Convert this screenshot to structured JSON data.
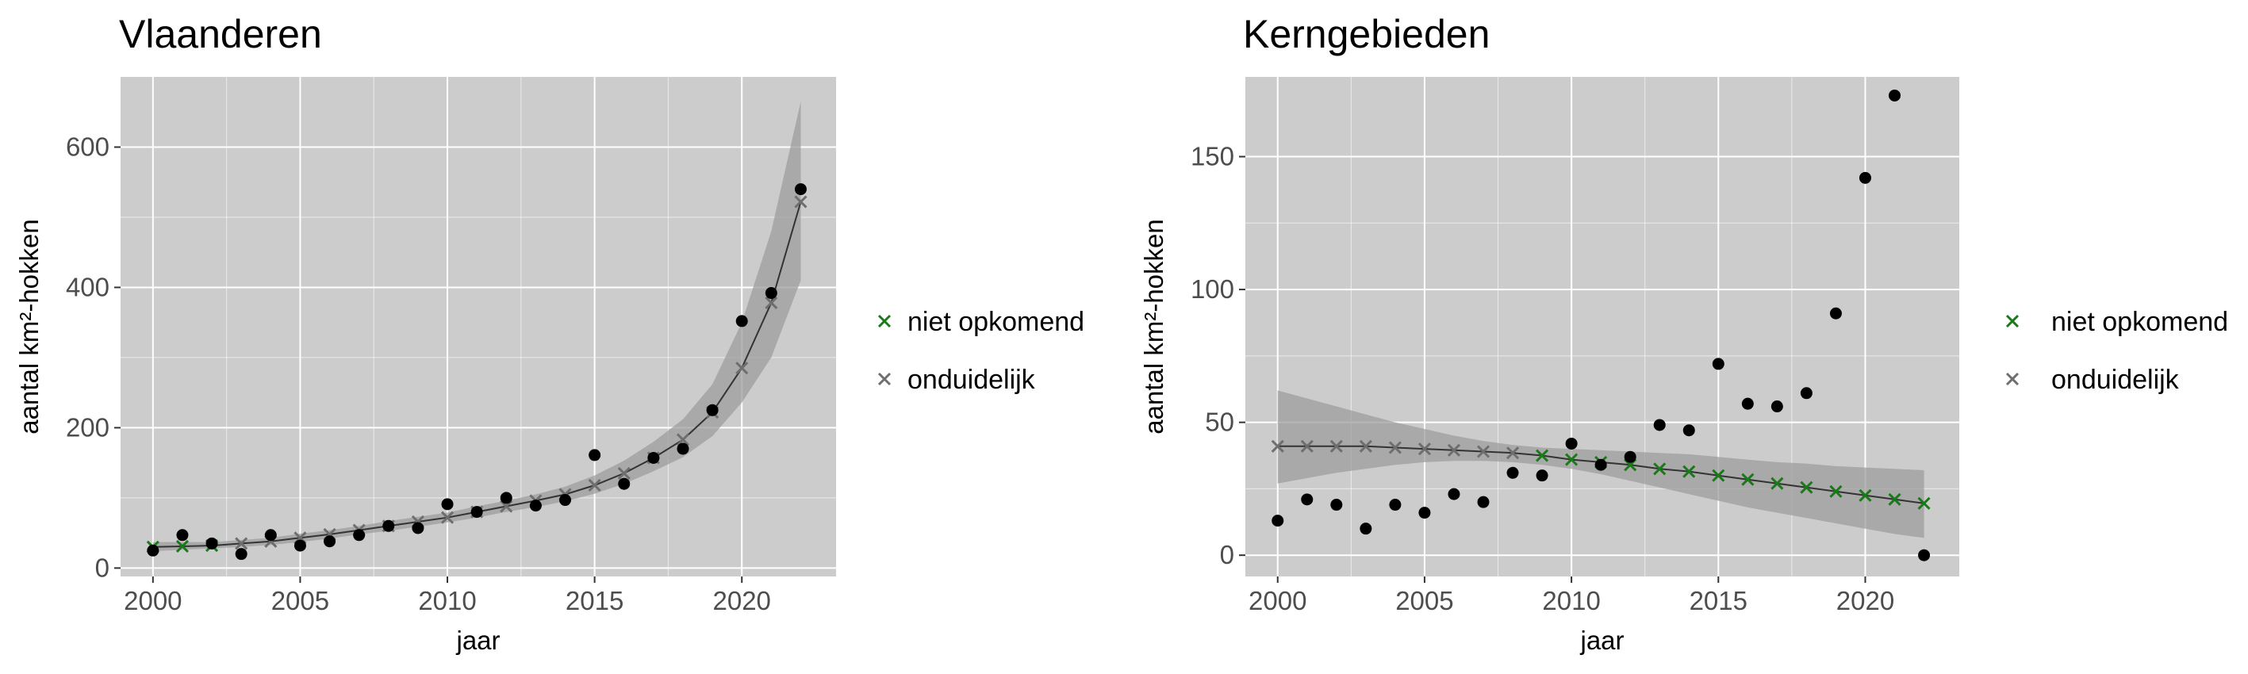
{
  "colors": {
    "panel_background": "#cccccc",
    "grid_major": "#ffffff",
    "confidence_band": "#9e9e9e",
    "observed_point": "#000000",
    "trend_line": "#333333",
    "niet_opkomend": "#1a7a1a",
    "onduidelijk": "#6e6e6e"
  },
  "legend": {
    "items": [
      {
        "label": "niet opkomend",
        "color": "#1a7a1a",
        "marker": "cross-x"
      },
      {
        "label": "onduidelijk",
        "color": "#6e6e6e",
        "marker": "cross-x"
      }
    ]
  },
  "chart_data": [
    {
      "type": "scatter",
      "title": "Vlaanderen",
      "xlabel": "jaar",
      "ylabel": "aantal km²-hokken",
      "xlim": [
        1998.9,
        2023.2
      ],
      "ylim": [
        -12,
        700
      ],
      "x_ticks": [
        2000,
        2005,
        2010,
        2015,
        2020
      ],
      "x_tick_labels": [
        "2000",
        "2005",
        "2010",
        "2015",
        "2020"
      ],
      "y_ticks": [
        0,
        200,
        400,
        600
      ],
      "y_tick_labels": [
        "0",
        "200",
        "400",
        "600"
      ],
      "grid": true,
      "legend_position": "right",
      "observed": {
        "x": [
          2000,
          2001,
          2002,
          2003,
          2004,
          2005,
          2006,
          2007,
          2008,
          2009,
          2010,
          2011,
          2012,
          2013,
          2014,
          2015,
          2016,
          2017,
          2018,
          2019,
          2020,
          2021,
          2022
        ],
        "y": [
          25,
          47,
          35,
          20,
          47,
          32,
          38,
          47,
          60,
          57,
          91,
          80,
          100,
          89,
          97,
          161,
          120,
          157,
          170,
          225,
          352,
          392,
          540
        ]
      },
      "trend": {
        "x": [
          2000,
          2001,
          2002,
          2003,
          2004,
          2005,
          2006,
          2007,
          2008,
          2009,
          2010,
          2011,
          2012,
          2013,
          2014,
          2015,
          2016,
          2017,
          2018,
          2019,
          2020,
          2021,
          2022
        ],
        "y": [
          30,
          31,
          32,
          35,
          38,
          43,
          48,
          54,
          60,
          66,
          72,
          80,
          88,
          96,
          105,
          118,
          135,
          157,
          183,
          222,
          285,
          378,
          522
        ],
        "status": [
          "niet opkomend",
          "niet opkomend",
          "niet opkomend",
          "onduidelijk",
          "onduidelijk",
          "onduidelijk",
          "onduidelijk",
          "onduidelijk",
          "onduidelijk",
          "onduidelijk",
          "onduidelijk",
          "onduidelijk",
          "onduidelijk",
          "onduidelijk",
          "onduidelijk",
          "onduidelijk",
          "onduidelijk",
          "onduidelijk",
          "onduidelijk",
          "onduidelijk",
          "onduidelijk",
          "onduidelijk",
          "onduidelijk"
        ],
        "lower": [
          24,
          26,
          28,
          30,
          33,
          37,
          42,
          48,
          53,
          59,
          65,
          72,
          80,
          87,
          95,
          106,
          120,
          138,
          158,
          188,
          236,
          300,
          410
        ],
        "upper": [
          37,
          37,
          37,
          40,
          43,
          49,
          54,
          60,
          67,
          73,
          79,
          88,
          96,
          105,
          116,
          132,
          153,
          180,
          212,
          262,
          350,
          480,
          665
        ]
      }
    },
    {
      "type": "scatter",
      "title": "Kerngebieden",
      "xlabel": "jaar",
      "ylabel": "aantal km²-hokken",
      "xlim": [
        1998.9,
        2023.2
      ],
      "ylim": [
        -8,
        180
      ],
      "x_ticks": [
        2000,
        2005,
        2010,
        2015,
        2020
      ],
      "x_tick_labels": [
        "2000",
        "2005",
        "2010",
        "2015",
        "2020"
      ],
      "y_ticks": [
        0,
        50,
        100,
        150
      ],
      "y_tick_labels": [
        "0",
        "50",
        "100",
        "150"
      ],
      "grid": true,
      "legend_position": "right",
      "observed": {
        "x": [
          2000,
          2001,
          2002,
          2003,
          2004,
          2005,
          2006,
          2007,
          2008,
          2009,
          2010,
          2011,
          2012,
          2013,
          2014,
          2015,
          2016,
          2017,
          2018,
          2019,
          2020,
          2021,
          2022
        ],
        "y": [
          13,
          21,
          19,
          10,
          19,
          16,
          23,
          20,
          31,
          30,
          42,
          34,
          37,
          49,
          47,
          72,
          57,
          56,
          61,
          91,
          142,
          173,
          0
        ]
      },
      "trend": {
        "x": [
          2000,
          2001,
          2002,
          2003,
          2004,
          2005,
          2006,
          2007,
          2008,
          2009,
          2010,
          2011,
          2012,
          2013,
          2014,
          2015,
          2016,
          2017,
          2018,
          2019,
          2020,
          2021,
          2022
        ],
        "y": [
          41,
          41,
          41,
          41,
          40.5,
          40,
          39.5,
          39,
          38.5,
          37.5,
          36,
          35,
          34,
          32.5,
          31.5,
          30,
          28.5,
          27,
          25.5,
          24,
          22.5,
          21,
          19.5
        ],
        "status": [
          "onduidelijk",
          "onduidelijk",
          "onduidelijk",
          "onduidelijk",
          "onduidelijk",
          "onduidelijk",
          "onduidelijk",
          "onduidelijk",
          "onduidelijk",
          "niet opkomend",
          "niet opkomend",
          "niet opkomend",
          "niet opkomend",
          "niet opkomend",
          "niet opkomend",
          "niet opkomend",
          "niet opkomend",
          "niet opkomend",
          "niet opkomend",
          "niet opkomend",
          "niet opkomend",
          "niet opkomend",
          "niet opkomend"
        ],
        "lower": [
          27,
          29,
          31,
          32.5,
          34,
          35,
          35.5,
          35.5,
          35,
          34,
          32.5,
          30.5,
          28,
          25.5,
          23,
          20.5,
          18,
          16,
          14,
          12,
          10,
          8,
          6.5
        ],
        "upper": [
          62,
          59,
          56,
          53,
          50,
          47.5,
          45,
          43,
          41.5,
          40.5,
          40,
          39.5,
          39,
          38.5,
          38,
          37,
          36,
          35,
          34.5,
          33.5,
          33,
          32.5,
          32
        ]
      }
    }
  ]
}
